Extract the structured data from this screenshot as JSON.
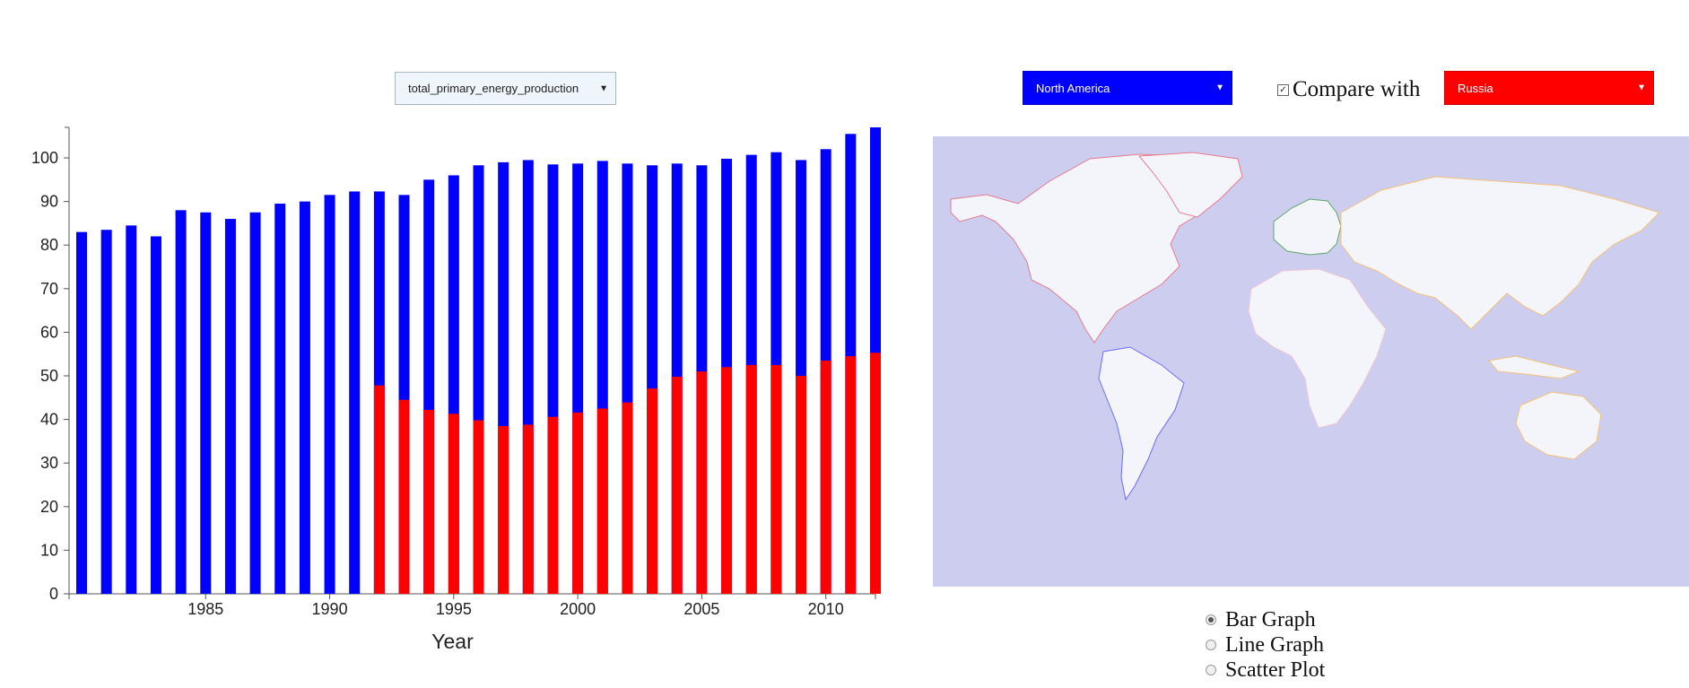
{
  "controls": {
    "metric_select": {
      "selected": "total_primary_energy_production"
    },
    "region_select": {
      "selected": "North America"
    },
    "compare": {
      "label": "Compare with",
      "checked": true,
      "selected": "Russia"
    },
    "graph_types": [
      {
        "label": "Bar Graph",
        "selected": true
      },
      {
        "label": "Line Graph",
        "selected": false
      },
      {
        "label": "Scatter Plot",
        "selected": false
      }
    ]
  },
  "colors": {
    "primary": "#0000ff",
    "compare": "#ff0000",
    "map_water": "#cdcdef",
    "map_land": "#f4f4fb"
  },
  "chart_data": {
    "type": "bar",
    "xlabel": "Year",
    "ylabel": "",
    "ylim": [
      0,
      107
    ],
    "yticks": [
      0,
      10,
      20,
      30,
      40,
      50,
      60,
      70,
      80,
      90,
      100
    ],
    "xticks": [
      1985,
      1990,
      1995,
      2000,
      2005,
      2010
    ],
    "x": [
      1980,
      1981,
      1982,
      1983,
      1984,
      1985,
      1986,
      1987,
      1988,
      1989,
      1990,
      1991,
      1992,
      1993,
      1994,
      1995,
      1996,
      1997,
      1998,
      1999,
      2000,
      2001,
      2002,
      2003,
      2004,
      2005,
      2006,
      2007,
      2008,
      2009,
      2010,
      2011,
      2012
    ],
    "series": [
      {
        "color": "#0000ff",
        "values": [
          83,
          83.5,
          84.5,
          82,
          88,
          87.5,
          86,
          87.5,
          89.5,
          90,
          91.5,
          92.3,
          92.3,
          91.5,
          95,
          96,
          98.3,
          99,
          99.5,
          98.5,
          98.7,
          99.3,
          98.7,
          98.3,
          98.7,
          98.3,
          99.8,
          100.7,
          101.3,
          99.5,
          102,
          105.5,
          107
        ]
      },
      {
        "color": "#ff0000",
        "values": [
          null,
          null,
          null,
          null,
          null,
          null,
          null,
          null,
          null,
          null,
          null,
          null,
          47.8,
          44.5,
          42.2,
          41.3,
          39.8,
          38.5,
          38.8,
          40.6,
          41.6,
          42.5,
          43.9,
          47.1,
          49.8,
          51,
          52,
          52.5,
          52.5,
          50,
          53.5,
          54.5,
          55.3
        ]
      }
    ]
  }
}
